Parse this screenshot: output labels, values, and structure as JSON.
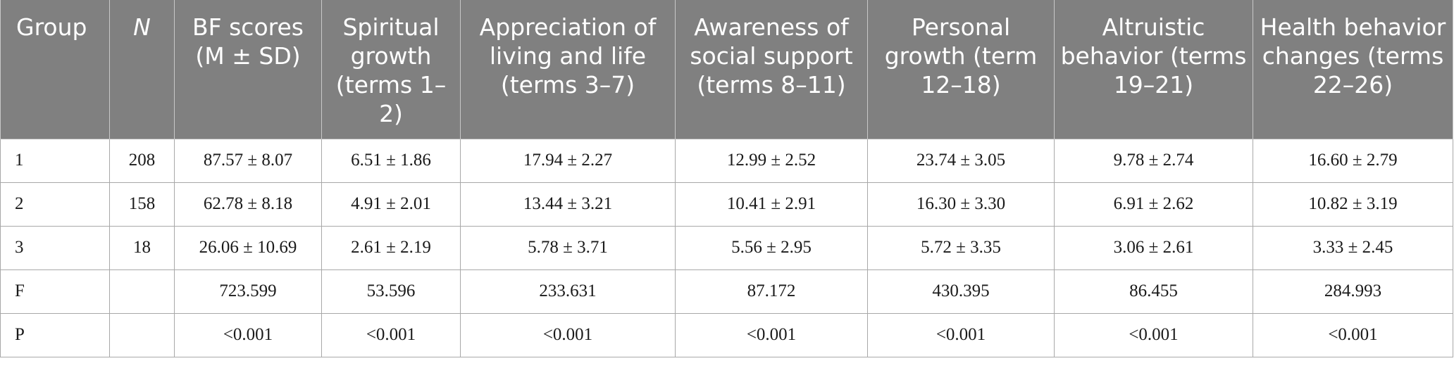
{
  "table": {
    "headers": [
      "Group",
      "N",
      "BF scores (M ± SD)",
      "Spiritual growth (terms 1–2)",
      "Appreciation of living and life (terms 3–7)",
      "Awareness of social support (terms 8–11)",
      "Personal growth (term 12–18)",
      "Altruistic behavior (terms 19–21)",
      "Health behavior changes (terms 22–26)"
    ],
    "rows": [
      [
        "1",
        "208",
        "87.57 ± 8.07",
        "6.51 ± 1.86",
        "17.94 ± 2.27",
        "12.99 ± 2.52",
        "23.74 ± 3.05",
        "9.78 ± 2.74",
        "16.60 ± 2.79"
      ],
      [
        "2",
        "158",
        "62.78 ± 8.18",
        "4.91 ± 2.01",
        "13.44 ± 3.21",
        "10.41 ± 2.91",
        "16.30 ± 3.30",
        "6.91 ± 2.62",
        "10.82 ± 3.19"
      ],
      [
        "3",
        "18",
        "26.06 ± 10.69",
        "2.61 ± 2.19",
        "5.78 ± 3.71",
        "5.56 ± 2.95",
        "5.72 ± 3.35",
        "3.06 ± 2.61",
        "3.33 ± 2.45"
      ],
      [
        "F",
        "",
        "723.599",
        "53.596",
        "233.631",
        "87.172",
        "430.395",
        "86.455",
        "284.993"
      ],
      [
        "P",
        "",
        "<0.001",
        "<0.001",
        "<0.001",
        "<0.001",
        "<0.001",
        "<0.001",
        "<0.001"
      ]
    ]
  }
}
